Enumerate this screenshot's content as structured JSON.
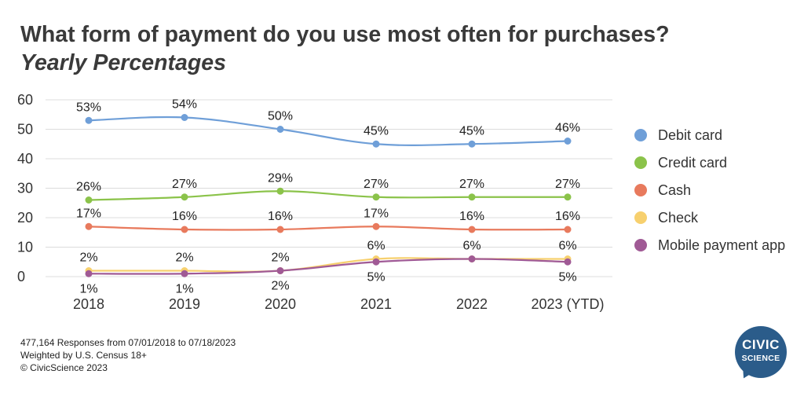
{
  "title": "What form of payment do you use most often for purchases?",
  "subtitle": "Yearly Percentages",
  "footer": {
    "line1": "477,164 Responses from 07/01/2018 to 07/18/2023",
    "line2": "Weighted by U.S. Census 18+",
    "line3": "© CivicScience 2023"
  },
  "logo": {
    "line1": "CIVIC",
    "line2": "SCIENCE"
  },
  "chart_data": {
    "type": "line",
    "categories": [
      "2018",
      "2019",
      "2020",
      "2021",
      "2022",
      "2023 (YTD)"
    ],
    "ylim": [
      0,
      60
    ],
    "yticks": [
      0,
      10,
      20,
      30,
      40,
      50,
      60
    ],
    "grid": true,
    "legend_position": "right",
    "series": [
      {
        "name": "Debit card",
        "color": "#6f9fd8",
        "values": [
          53,
          54,
          50,
          45,
          45,
          46
        ],
        "labels": [
          "53%",
          "54%",
          "50%",
          "45%",
          "45%",
          "46%"
        ],
        "label_side": [
          "above",
          "above",
          "above",
          "above",
          "above",
          "above"
        ]
      },
      {
        "name": "Credit card",
        "color": "#8bc34a",
        "values": [
          26,
          27,
          29,
          27,
          27,
          27
        ],
        "labels": [
          "26%",
          "27%",
          "29%",
          "27%",
          "27%",
          "27%"
        ],
        "label_side": [
          "above",
          "above",
          "above",
          "above",
          "above",
          "above"
        ]
      },
      {
        "name": "Cash",
        "color": "#e87a5d",
        "values": [
          17,
          16,
          16,
          17,
          16,
          16
        ],
        "labels": [
          "17%",
          "16%",
          "16%",
          "17%",
          "16%",
          "16%"
        ],
        "label_side": [
          "above",
          "above",
          "above",
          "above",
          "above",
          "above"
        ]
      },
      {
        "name": "Check",
        "color": "#f7d06e",
        "values": [
          2,
          2,
          2,
          6,
          6,
          6
        ],
        "labels": [
          "2%",
          "2%",
          "2%",
          "6%",
          "6%",
          "6%"
        ],
        "label_side": [
          "above",
          "above",
          "above",
          "above",
          "above",
          "above"
        ]
      },
      {
        "name": "Mobile payment app",
        "color": "#a05a95",
        "values": [
          1,
          1,
          2,
          5,
          6,
          5
        ],
        "labels": [
          "1%",
          "1%",
          "2%",
          "5%",
          "6%",
          "5%"
        ],
        "label_side": [
          "below",
          "below",
          "below",
          "below",
          "hidden",
          "below"
        ]
      }
    ]
  }
}
